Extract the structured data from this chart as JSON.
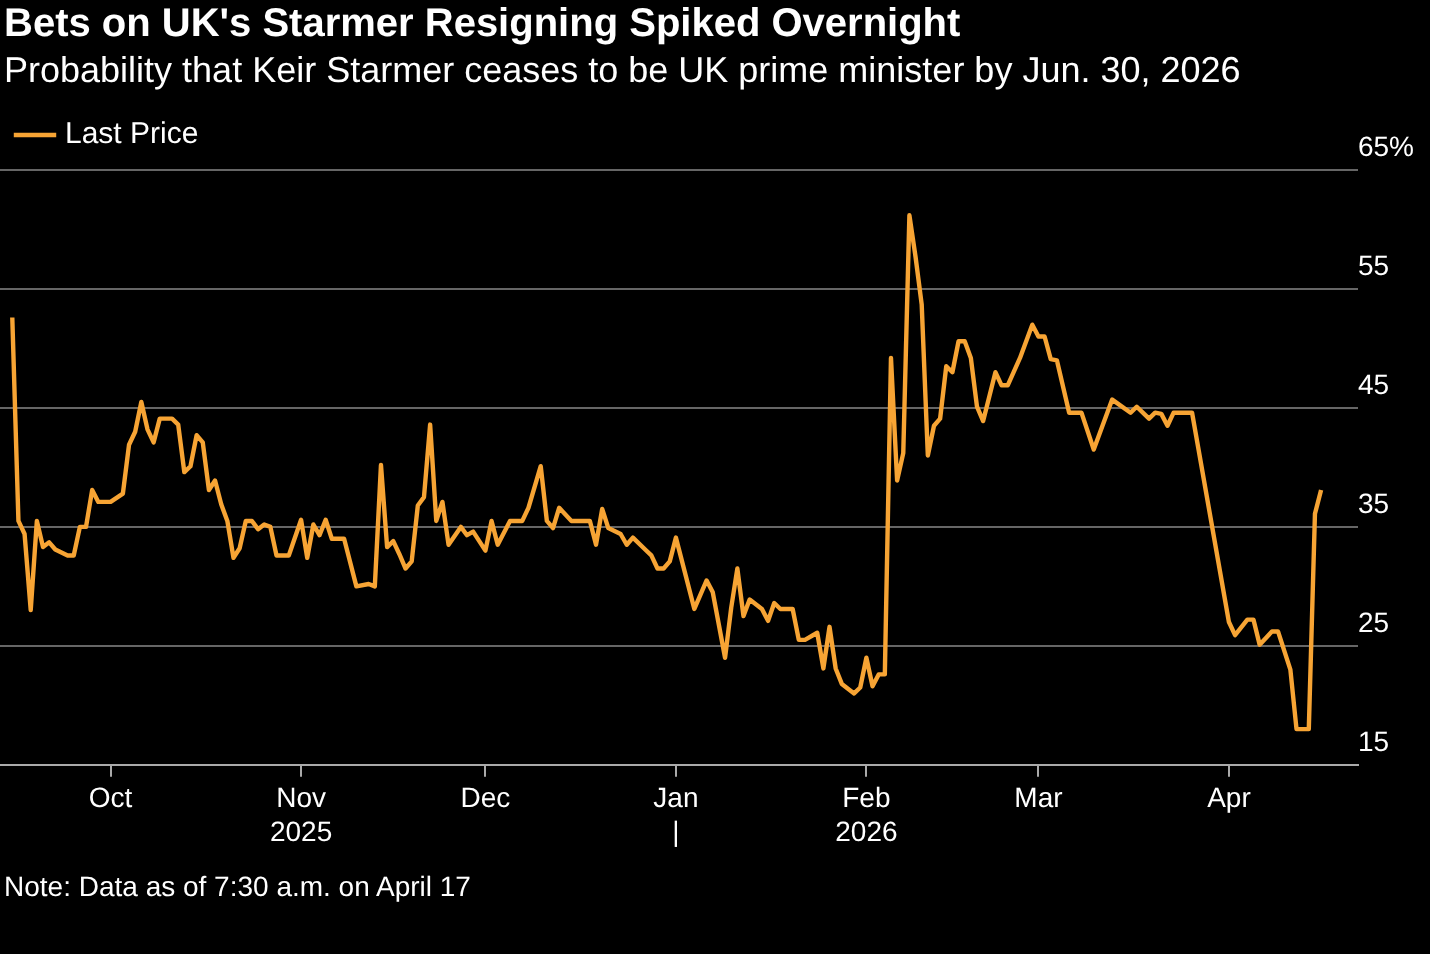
{
  "chart_data": {
    "type": "line",
    "title": "Bets on UK's Starmer Resigning Spiked Overnight",
    "subtitle": "Probability that Keir Starmer ceases to be UK prime minister by Jun. 30, 2026",
    "x": [
      "2025-09-15",
      "2025-09-16",
      "2025-09-17",
      "2025-09-18",
      "2025-09-19",
      "2025-09-20",
      "2025-09-21",
      "2025-09-22",
      "2025-09-24",
      "2025-09-25",
      "2025-09-26",
      "2025-09-27",
      "2025-09-28",
      "2025-09-29",
      "2025-10-01",
      "2025-10-03",
      "2025-10-04",
      "2025-10-05",
      "2025-10-06",
      "2025-10-07",
      "2025-10-08",
      "2025-10-09",
      "2025-10-11",
      "2025-10-12",
      "2025-10-13",
      "2025-10-14",
      "2025-10-15",
      "2025-10-16",
      "2025-10-17",
      "2025-10-18",
      "2025-10-19",
      "2025-10-20",
      "2025-10-21",
      "2025-10-22",
      "2025-10-23",
      "2025-10-24",
      "2025-10-25",
      "2025-10-26",
      "2025-10-27",
      "2025-10-28",
      "2025-10-30",
      "2025-11-01",
      "2025-11-02",
      "2025-11-03",
      "2025-11-04",
      "2025-11-05",
      "2025-11-06",
      "2025-11-08",
      "2025-11-10",
      "2025-11-12",
      "2025-11-13",
      "2025-11-14",
      "2025-11-15",
      "2025-11-16",
      "2025-11-17",
      "2025-11-18",
      "2025-11-19",
      "2025-11-20",
      "2025-11-21",
      "2025-11-22",
      "2025-11-23",
      "2025-11-24",
      "2025-11-25",
      "2025-11-27",
      "2025-11-28",
      "2025-11-29",
      "2025-11-30",
      "2025-12-01",
      "2025-12-02",
      "2025-12-03",
      "2025-12-05",
      "2025-12-07",
      "2025-12-08",
      "2025-12-10",
      "2025-12-11",
      "2025-12-12",
      "2025-12-13",
      "2025-12-15",
      "2025-12-18",
      "2025-12-19",
      "2025-12-20",
      "2025-12-21",
      "2025-12-23",
      "2025-12-24",
      "2025-12-25",
      "2025-12-27",
      "2025-12-28",
      "2025-12-29",
      "2025-12-30",
      "2025-12-31",
      "2026-01-01",
      "2026-01-04",
      "2026-01-06",
      "2026-01-07",
      "2026-01-09",
      "2026-01-10",
      "2026-01-11",
      "2026-01-12",
      "2026-01-13",
      "2026-01-15",
      "2026-01-16",
      "2026-01-17",
      "2026-01-18",
      "2026-01-20",
      "2026-01-21",
      "2026-01-22",
      "2026-01-24",
      "2026-01-25",
      "2026-01-26",
      "2026-01-27",
      "2026-01-28",
      "2026-01-30",
      "2026-01-31",
      "2026-02-01",
      "2026-02-02",
      "2026-02-03",
      "2026-02-04",
      "2026-02-05",
      "2026-02-06",
      "2026-02-07",
      "2026-02-08",
      "2026-02-09",
      "2026-02-10",
      "2026-02-11",
      "2026-02-12",
      "2026-02-13",
      "2026-02-14",
      "2026-02-15",
      "2026-02-16",
      "2026-02-17",
      "2026-02-18",
      "2026-02-19",
      "2026-02-20",
      "2026-02-22",
      "2026-02-23",
      "2026-02-24",
      "2026-02-26",
      "2026-02-28",
      "2026-03-01",
      "2026-03-02",
      "2026-03-03",
      "2026-03-04",
      "2026-03-06",
      "2026-03-08",
      "2026-03-10",
      "2026-03-13",
      "2026-03-16",
      "2026-03-17",
      "2026-03-19",
      "2026-03-20",
      "2026-03-21",
      "2026-03-22",
      "2026-03-23",
      "2026-03-26",
      "2026-04-01",
      "2026-04-02",
      "2026-04-04",
      "2026-04-05",
      "2026-04-06",
      "2026-04-08",
      "2026-04-09",
      "2026-04-11",
      "2026-04-12",
      "2026-04-14",
      "2026-04-15",
      "2026-04-16"
    ],
    "series": [
      {
        "name": "Last Price",
        "color": "#f7a434",
        "values": [
          52.6,
          35.5,
          34.4,
          28,
          35.5,
          33.3,
          33.7,
          33.1,
          32.6,
          32.6,
          35,
          35,
          38.1,
          37.1,
          37.1,
          37.8,
          41.9,
          43,
          45.5,
          43.2,
          42.1,
          44.1,
          44.1,
          43.6,
          39.6,
          40.1,
          42.7,
          42.1,
          38.1,
          38.9,
          36.9,
          35.5,
          32.4,
          33.2,
          35.5,
          35.5,
          34.8,
          35.2,
          35,
          32.6,
          32.6,
          35.6,
          32.4,
          35.2,
          34.3,
          35.6,
          34,
          34,
          30,
          30.2,
          30,
          40.2,
          33.3,
          33.8,
          32.7,
          31.5,
          32.1,
          36.8,
          37.5,
          43.6,
          35.5,
          37.1,
          33.5,
          35,
          34.3,
          34.6,
          33.8,
          33,
          35.5,
          33.5,
          35.5,
          35.5,
          36.6,
          40.1,
          35.5,
          34.9,
          36.6,
          35.5,
          35.5,
          33.5,
          36.5,
          34.9,
          34.4,
          33.5,
          34.1,
          33.1,
          32.6,
          31.5,
          31.5,
          32.1,
          34.1,
          28.1,
          30.5,
          29.5,
          24,
          28.2,
          31.5,
          27.5,
          28.9,
          28.1,
          27.1,
          28.6,
          28.1,
          28.1,
          25.5,
          25.5,
          26.1,
          23.1,
          26.6,
          23.1,
          21.8,
          21,
          21.5,
          24,
          21.6,
          22.6,
          22.6,
          49.2,
          38.9,
          41.2,
          61.2,
          57.7,
          53.7,
          41,
          43.5,
          44.1,
          48.5,
          48,
          50.6,
          50.6,
          49.2,
          45.1,
          43.9,
          48,
          46.9,
          46.9,
          49.2,
          52,
          51,
          51,
          49.1,
          49,
          44.6,
          44.6,
          41.5,
          45.7,
          44.6,
          45.1,
          44.1,
          44.6,
          44.5,
          43.5,
          44.6,
          44.6,
          27,
          25.9,
          27.2,
          27.2,
          25.1,
          26.2,
          26.2,
          23,
          18,
          18,
          36.1,
          38.1
        ]
      }
    ],
    "xlim": [
      "2025-09-13",
      "2026-04-22"
    ],
    "xticks": [
      {
        "value": "2025-10-01",
        "label": "Oct"
      },
      {
        "value": "2025-11-01",
        "label": "Nov\n2025"
      },
      {
        "value": "2025-12-01",
        "label": "Dec"
      },
      {
        "value": "2026-01-01",
        "label": "Jan\n|"
      },
      {
        "value": "2026-02-01",
        "label": "Feb\n2026"
      },
      {
        "value": "2026-03-01",
        "label": "Mar"
      },
      {
        "value": "2026-04-01",
        "label": "Apr"
      }
    ],
    "ylim": [
      15,
      65
    ],
    "yticks": [
      15,
      25,
      35,
      45,
      55,
      {
        "value": 65,
        "label": "65%"
      }
    ],
    "grid": "y",
    "legend": "top left",
    "line_style": "solid",
    "marker": "none",
    "annotations": [
      "Note: Data as of 7:30 a.m. on April 17"
    ]
  }
}
